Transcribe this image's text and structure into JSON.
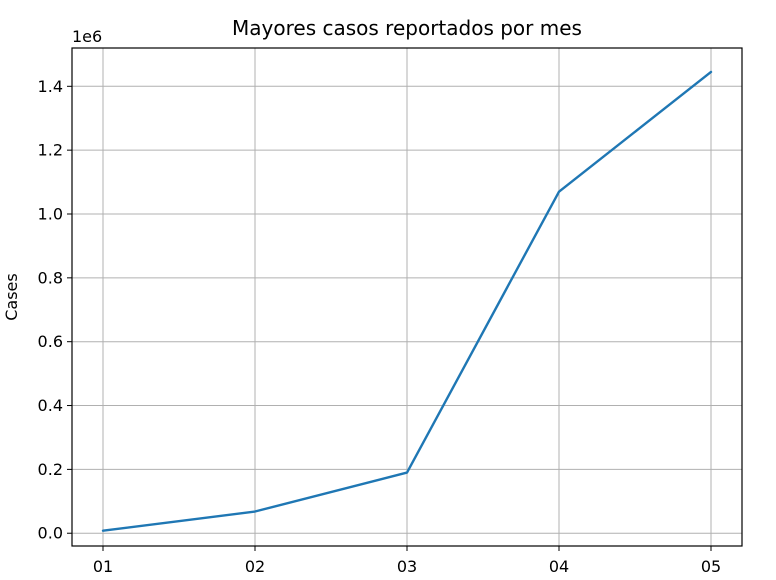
{
  "chart_data": {
    "type": "line",
    "title": "Mayores casos reportados por mes",
    "xlabel": "",
    "ylabel": "Cases",
    "y_offset_label": "1e6",
    "categories": [
      "01",
      "02",
      "03",
      "04",
      "05"
    ],
    "series": [
      {
        "values": [
          8000,
          68000,
          190000,
          1070000,
          1445000
        ],
        "color": "#1f77b4"
      }
    ],
    "yticks": [
      0.0,
      0.2,
      0.4,
      0.6,
      0.8,
      1.0,
      1.2,
      1.4
    ],
    "ytick_labels": [
      "0.0",
      "0.2",
      "0.4",
      "0.6",
      "0.8",
      "1.0",
      "1.2",
      "1.4"
    ],
    "ylim": [
      -0.04,
      1.52
    ],
    "y_scale_factor": 1000000,
    "grid": true,
    "legend": "none"
  }
}
